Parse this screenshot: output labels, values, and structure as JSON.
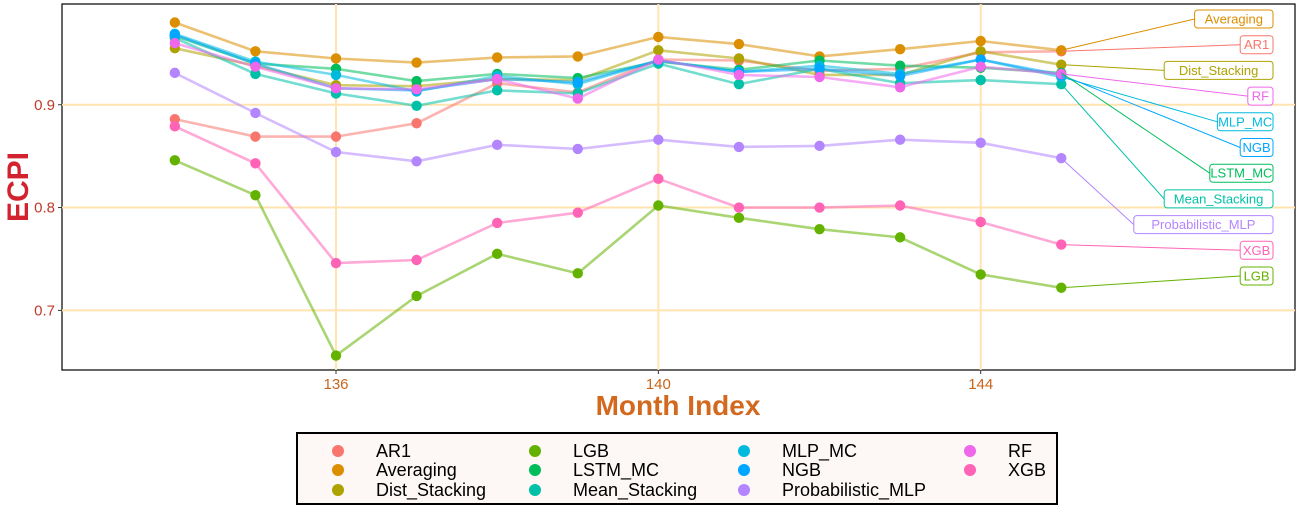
{
  "chart_data": {
    "type": "line",
    "xlabel": "Month Index",
    "ylabel": "ECPI",
    "xlim": [
      132.6,
      147.9
    ],
    "ylim": [
      0.642,
      0.998
    ],
    "x_ticks": [
      136,
      140,
      144
    ],
    "y_ticks": [
      0.7,
      0.8,
      0.9
    ],
    "y_tick_labels": [
      "0.7",
      "0.8",
      "0.9"
    ],
    "grid": true,
    "legend_position": "bottom",
    "x": [
      134,
      135,
      136,
      137,
      138,
      139,
      140,
      141,
      142,
      143,
      144,
      145
    ],
    "series": [
      {
        "name": "AR1",
        "color": "#F8766D",
        "values": [
          0.886,
          0.869,
          0.869,
          0.882,
          0.921,
          0.912,
          0.944,
          0.943,
          0.933,
          0.935,
          0.951,
          0.952
        ]
      },
      {
        "name": "Averaging",
        "color": "#DB8E00",
        "values": [
          0.98,
          0.952,
          0.945,
          0.941,
          0.946,
          0.947,
          0.966,
          0.959,
          0.947,
          0.954,
          0.962,
          0.953
        ]
      },
      {
        "name": "Dist_Stacking",
        "color": "#AEA200",
        "values": [
          0.955,
          0.938,
          0.919,
          0.918,
          0.925,
          0.924,
          0.953,
          0.945,
          0.929,
          0.929,
          0.952,
          0.939
        ]
      },
      {
        "name": "LGB",
        "color": "#64B200",
        "values": [
          0.846,
          0.812,
          0.656,
          0.714,
          0.755,
          0.736,
          0.802,
          0.79,
          0.779,
          0.771,
          0.735,
          0.722
        ]
      },
      {
        "name": "LSTM_MC",
        "color": "#00BD5C",
        "values": [
          0.967,
          0.94,
          0.935,
          0.923,
          0.93,
          0.926,
          0.942,
          0.934,
          0.943,
          0.938,
          0.936,
          0.931
        ]
      },
      {
        "name": "Mean_Stacking",
        "color": "#00C1A7",
        "values": [
          0.965,
          0.93,
          0.911,
          0.899,
          0.914,
          0.911,
          0.94,
          0.92,
          0.935,
          0.921,
          0.924,
          0.92
        ]
      },
      {
        "name": "MLP_MC",
        "color": "#00BADE",
        "values": [
          0.969,
          0.942,
          0.929,
          0.913,
          0.928,
          0.92,
          0.943,
          0.932,
          0.938,
          0.93,
          0.944,
          0.927
        ]
      },
      {
        "name": "NGB",
        "color": "#00A6FF",
        "values": [
          0.968,
          0.94,
          0.916,
          0.914,
          0.925,
          0.922,
          0.943,
          0.932,
          0.935,
          0.928,
          0.944,
          0.929
        ]
      },
      {
        "name": "Probabilistic_MLP",
        "color": "#B385FF",
        "values": [
          0.931,
          0.892,
          0.854,
          0.845,
          0.861,
          0.857,
          0.866,
          0.859,
          0.86,
          0.866,
          0.863,
          0.848
        ]
      },
      {
        "name": "RF",
        "color": "#EF67EB",
        "values": [
          0.96,
          0.937,
          0.916,
          0.915,
          0.925,
          0.906,
          0.944,
          0.929,
          0.927,
          0.917,
          0.937,
          0.93
        ]
      },
      {
        "name": "XGB",
        "color": "#FF63B6",
        "values": [
          0.879,
          0.843,
          0.746,
          0.749,
          0.785,
          0.795,
          0.828,
          0.8,
          0.8,
          0.802,
          0.786,
          0.764
        ]
      }
    ],
    "end_labels": [
      {
        "series": "Averaging",
        "label": "Averaging"
      },
      {
        "series": "AR1",
        "label": "AR1"
      },
      {
        "series": "Dist_Stacking",
        "label": "Dist_Stacking"
      },
      {
        "series": "RF",
        "label": "RF"
      },
      {
        "series": "MLP_MC",
        "label": "MLP_MC"
      },
      {
        "series": "NGB",
        "label": "NGB"
      },
      {
        "series": "LSTM_MC",
        "label": "LSTM_MC"
      },
      {
        "series": "Mean_Stacking",
        "label": "Mean_Stacking"
      },
      {
        "series": "Probabilistic_MLP",
        "label": "Probabilistic_MLP"
      },
      {
        "series": "XGB",
        "label": "XGB"
      },
      {
        "series": "LGB",
        "label": "LGB"
      }
    ],
    "legend_columns": [
      [
        "AR1",
        "Averaging",
        "Dist_Stacking"
      ],
      [
        "LGB",
        "LSTM_MC",
        "Mean_Stacking"
      ],
      [
        "MLP_MC",
        "NGB",
        "Probabilistic_MLP"
      ],
      [
        "RF",
        "XGB"
      ]
    ]
  }
}
